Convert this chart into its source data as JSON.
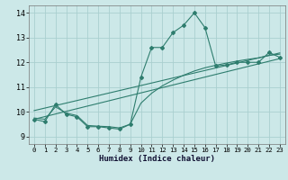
{
  "xlabel": "Humidex (Indice chaleur)",
  "bg_color": "#cce8e8",
  "grid_color": "#aacfcf",
  "line_color": "#2e7d6e",
  "x_ticks": [
    0,
    1,
    2,
    3,
    4,
    5,
    6,
    7,
    8,
    9,
    10,
    11,
    12,
    13,
    14,
    15,
    16,
    17,
    18,
    19,
    20,
    21,
    22,
    23
  ],
  "ylim": [
    8.7,
    14.3
  ],
  "xlim": [
    -0.5,
    23.5
  ],
  "yticks": [
    9,
    10,
    11,
    12,
    13,
    14
  ],
  "line1_x": [
    0,
    1,
    2,
    3,
    4,
    5,
    6,
    7,
    8,
    9,
    10,
    11,
    12,
    13,
    14,
    15,
    16,
    17,
    18,
    19,
    20,
    21,
    22,
    23
  ],
  "line1_y": [
    9.7,
    9.6,
    10.3,
    9.9,
    9.8,
    9.4,
    9.4,
    9.35,
    9.3,
    9.5,
    11.4,
    12.6,
    12.6,
    13.2,
    13.5,
    14.0,
    13.4,
    11.85,
    11.9,
    12.0,
    12.0,
    12.0,
    12.4,
    12.2
  ],
  "line2_x": [
    0,
    1,
    2,
    3,
    4,
    5,
    6,
    7,
    8,
    9,
    10,
    11,
    12,
    13,
    14,
    15,
    16,
    17,
    18,
    19,
    20,
    21,
    22,
    23
  ],
  "line2_y": [
    9.75,
    9.7,
    10.2,
    9.95,
    9.85,
    9.45,
    9.42,
    9.4,
    9.35,
    9.5,
    10.35,
    10.75,
    11.05,
    11.28,
    11.48,
    11.65,
    11.78,
    11.88,
    11.97,
    12.05,
    12.12,
    12.18,
    12.28,
    12.33
  ],
  "line3_x": [
    0,
    23
  ],
  "line3_y": [
    9.7,
    12.15
  ],
  "line4_x": [
    0,
    23
  ],
  "line4_y": [
    10.05,
    12.38
  ]
}
